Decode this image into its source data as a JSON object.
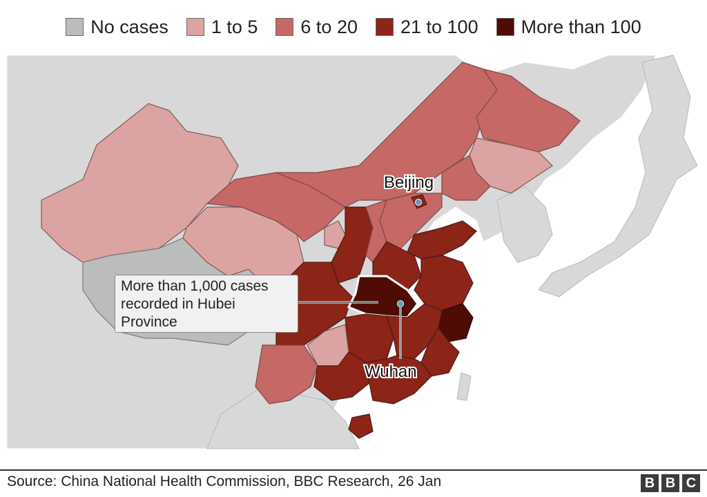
{
  "legend": {
    "items": [
      {
        "label": "No cases",
        "color": "#bcbcbc"
      },
      {
        "label": "1 to 5",
        "color": "#dba3a1"
      },
      {
        "label": "6 to 20",
        "color": "#c66866"
      },
      {
        "label": "21 to 100",
        "color": "#8c2418"
      },
      {
        "label": "More than 100",
        "color": "#4f0c04"
      }
    ]
  },
  "annotation": {
    "line1": "More than 1,000 cases",
    "line2": "recorded in Hubei",
    "line3": "Province"
  },
  "cities": {
    "beijing": "Beijing",
    "wuhan": "Wuhan"
  },
  "footer": {
    "source": "Source: China National Health Commission, BBC Research, 26 Jan",
    "logo_letters": [
      "B",
      "B",
      "C"
    ]
  },
  "colors": {
    "background_land": "#d8d8d8",
    "sea": "#ffffff",
    "hubei_outline": "#ffffff"
  }
}
